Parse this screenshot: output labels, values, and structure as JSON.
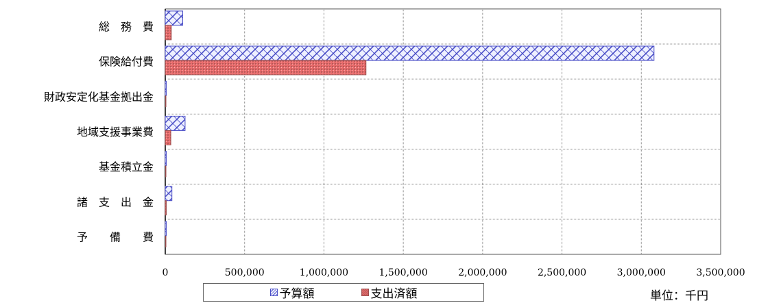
{
  "chart_data": {
    "type": "bar",
    "orientation": "horizontal",
    "categories": [
      "総　務　費",
      "保険給付費",
      "財政安定化基金拠出金",
      "地域支援事業費",
      "基金積立金",
      "諸　支　出　金",
      "予　　備　　費"
    ],
    "series": [
      {
        "name": "予算額",
        "values": [
          110000,
          3080000,
          2000,
          125000,
          2000,
          42000,
          5000
        ]
      },
      {
        "name": "支出済額",
        "values": [
          38000,
          1265000,
          0,
          35000,
          0,
          3000,
          0
        ]
      }
    ],
    "xlim": [
      0,
      3500000
    ],
    "xticks": [
      "0",
      "500,000",
      "1,000,000",
      "1,500,000",
      "2,000,000",
      "2,500,000",
      "3,000,000",
      "3,500,000"
    ],
    "grid": true,
    "legend_position": "bottom",
    "unit": "単位：千円",
    "colors": {
      "budget": "#4b4fc7",
      "budget_fill": "#eef0ff",
      "spent": "#e86b6b",
      "spent_dark": "#9b4c4c"
    }
  }
}
